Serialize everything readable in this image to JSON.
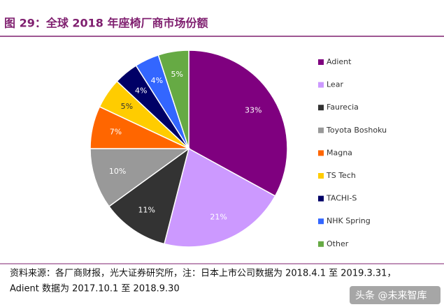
{
  "chart_data": {
    "type": "pie",
    "title": "图 29：全球 2018 年座椅厂商市场份额",
    "categories": [
      "Adient",
      "Lear",
      "Faurecia",
      "Toyota Boshoku",
      "Magna",
      "TS Tech",
      "TACHI-S",
      "NHK Spring",
      "Other"
    ],
    "values": [
      33,
      21,
      11,
      10,
      7,
      5,
      4,
      4,
      5
    ],
    "value_labels": [
      "33%",
      "21%",
      "11%",
      "10%",
      "7%",
      "5%",
      "4%",
      "4%",
      "5%"
    ],
    "colors": [
      "#7f007f",
      "#cc99ff",
      "#333333",
      "#999999",
      "#ff6600",
      "#ffcc00",
      "#000066",
      "#3366ff",
      "#66aa44"
    ],
    "source": [
      "资料来源：各厂商财报，光大证券研究所，注：日本上市公司数据为 2018.4.1 至 2019.3.31，",
      "Adient 数据为 2017.10.1 至 2018.9.30"
    ],
    "watermark": "头条 @未来智库"
  }
}
